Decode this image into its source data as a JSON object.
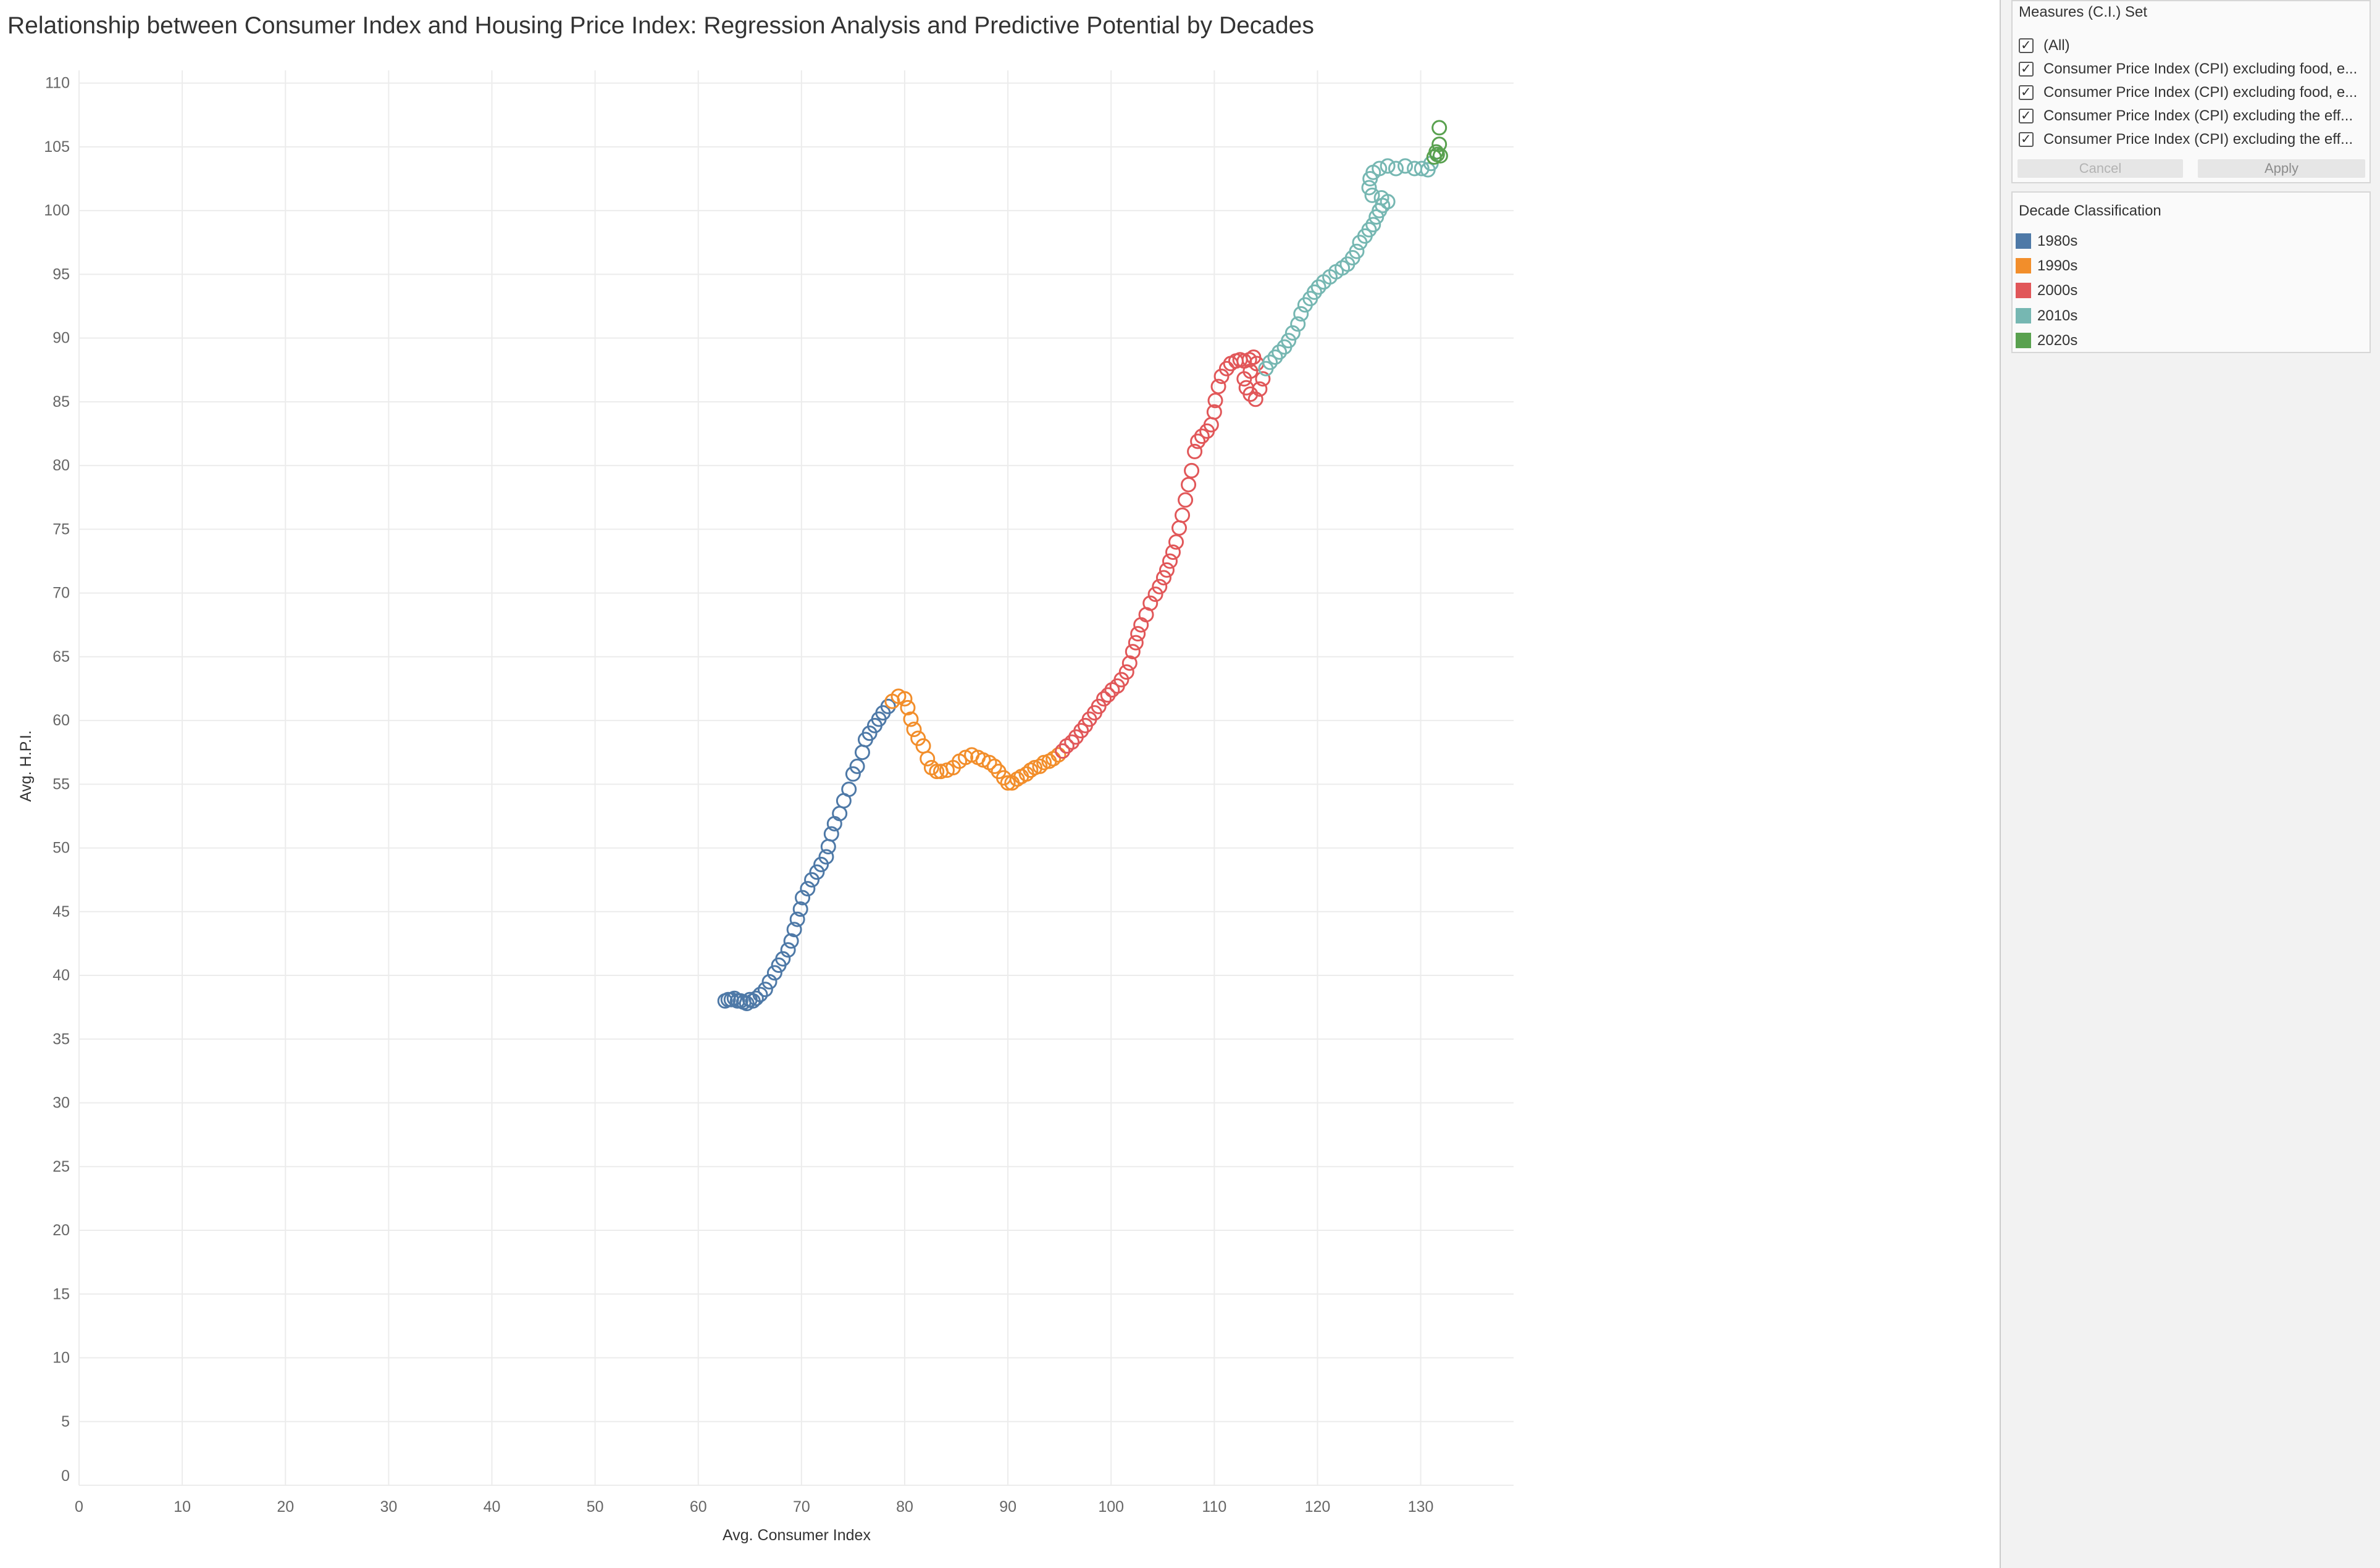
{
  "chart_data": {
    "type": "scatter",
    "title": "Relationship between Consumer Index and Housing Price Index: Regression Analysis and Predictive Potential by Decades",
    "xlabel": "Avg. Consumer Index",
    "ylabel": "Avg. H.P.I.",
    "xlim": [
      0,
      139
    ],
    "ylim": [
      0,
      111
    ],
    "x_ticks": [
      0,
      10,
      20,
      30,
      40,
      50,
      60,
      70,
      80,
      90,
      100,
      110,
      120,
      130
    ],
    "y_ticks": [
      0,
      5,
      10,
      15,
      20,
      25,
      30,
      35,
      40,
      45,
      50,
      55,
      60,
      65,
      70,
      75,
      80,
      85,
      90,
      95,
      100,
      105,
      110
    ],
    "grid": true,
    "legend": {
      "title": "Decade Classification",
      "position": "right"
    },
    "series": [
      {
        "name": "1980s",
        "color": "#4e79a7",
        "x": [
          62.6,
          62.9,
          63.2,
          63.5,
          63.8,
          64.1,
          64.4,
          64.7,
          65.0,
          65.3,
          65.6,
          66.0,
          66.5,
          66.9,
          67.4,
          67.8,
          68.2,
          68.7,
          69.0,
          69.3,
          69.6,
          69.9,
          70.1,
          70.6,
          71.0,
          71.5,
          71.9,
          72.4,
          72.6,
          72.9,
          73.2,
          73.7,
          74.1,
          74.6,
          75.0,
          75.4,
          75.9,
          76.2,
          76.6,
          77.1,
          77.5,
          77.9,
          78.4
        ],
        "y": [
          38.0,
          38.1,
          38.1,
          38.2,
          38.0,
          38.0,
          37.9,
          37.8,
          38.1,
          38.0,
          38.2,
          38.5,
          38.9,
          39.5,
          40.2,
          40.8,
          41.3,
          42.0,
          42.7,
          43.6,
          44.4,
          45.2,
          46.1,
          46.8,
          47.5,
          48.1,
          48.7,
          49.3,
          50.1,
          51.1,
          51.9,
          52.7,
          53.7,
          54.6,
          55.8,
          56.4,
          57.5,
          58.5,
          59.0,
          59.6,
          60.1,
          60.6,
          61.1
        ]
      },
      {
        "name": "1990s",
        "color": "#f28e2b",
        "x": [
          78.8,
          79.4,
          80.0,
          80.3,
          80.6,
          80.9,
          81.3,
          81.8,
          82.2,
          82.6,
          83.1,
          83.5,
          84.1,
          84.7,
          85.3,
          85.9,
          86.5,
          87.1,
          87.6,
          88.2,
          88.7,
          89.1,
          89.6,
          90.0,
          90.4,
          90.9,
          91.3,
          91.8,
          92.2,
          92.6,
          93.1,
          93.5,
          94.0,
          94.4,
          94.9
        ],
        "y": [
          61.5,
          61.9,
          61.7,
          61.0,
          60.1,
          59.3,
          58.6,
          58.0,
          57.0,
          56.3,
          56.0,
          56.0,
          56.1,
          56.3,
          56.8,
          57.1,
          57.3,
          57.1,
          56.9,
          56.7,
          56.4,
          56.0,
          55.5,
          55.1,
          55.1,
          55.4,
          55.6,
          55.8,
          56.1,
          56.3,
          56.4,
          56.7,
          56.8,
          57.0,
          57.3
        ]
      },
      {
        "name": "2000s",
        "color": "#e15759",
        "x": [
          95.3,
          95.7,
          96.2,
          96.6,
          97.1,
          97.5,
          97.9,
          98.4,
          98.8,
          99.3,
          99.7,
          100.1,
          100.6,
          101.0,
          101.5,
          101.8,
          102.1,
          102.4,
          102.6,
          102.9,
          103.4,
          103.8,
          104.3,
          104.7,
          105.1,
          105.4,
          105.7,
          106.0,
          106.3,
          106.6,
          106.9,
          107.2,
          107.5,
          107.8,
          108.1,
          108.4,
          108.8,
          109.3,
          109.7,
          110.0,
          110.1,
          110.4,
          110.7,
          111.2,
          111.6,
          112.1,
          112.5,
          112.9,
          113.4,
          113.8,
          114.1,
          113.5,
          112.9,
          113.1,
          113.5,
          114.0,
          114.4,
          114.7
        ],
        "y": [
          57.6,
          58.0,
          58.3,
          58.7,
          59.2,
          59.6,
          60.1,
          60.6,
          61.1,
          61.7,
          62.0,
          62.4,
          62.7,
          63.2,
          63.8,
          64.5,
          65.4,
          66.1,
          66.8,
          67.5,
          68.3,
          69.2,
          69.9,
          70.5,
          71.2,
          71.8,
          72.5,
          73.2,
          74.0,
          75.1,
          76.1,
          77.3,
          78.5,
          79.6,
          81.1,
          81.9,
          82.3,
          82.7,
          83.2,
          84.2,
          85.1,
          86.2,
          87.0,
          87.6,
          88.0,
          88.2,
          88.3,
          88.2,
          88.3,
          88.5,
          88.0,
          87.4,
          86.8,
          86.1,
          85.6,
          85.2,
          86.0,
          86.8
        ]
      },
      {
        "name": "2010s",
        "color": "#76b7b2",
        "x": [
          115.0,
          115.4,
          115.9,
          116.3,
          116.8,
          117.2,
          117.6,
          118.1,
          118.4,
          118.8,
          119.3,
          119.7,
          120.1,
          120.6,
          121.2,
          121.8,
          122.4,
          122.9,
          123.4,
          123.8,
          124.1,
          124.6,
          125.0,
          125.4,
          125.7,
          126.0,
          126.3,
          126.8,
          126.2,
          125.3,
          125.0,
          125.1,
          125.4,
          126.0,
          126.8,
          127.6,
          128.5,
          129.4,
          130.1,
          130.7,
          131.0
        ],
        "y": [
          87.6,
          88.1,
          88.5,
          88.9,
          89.3,
          89.8,
          90.4,
          91.1,
          91.9,
          92.6,
          93.1,
          93.6,
          94.0,
          94.4,
          94.8,
          95.2,
          95.5,
          95.8,
          96.3,
          96.8,
          97.5,
          98.0,
          98.5,
          98.9,
          99.5,
          100.0,
          100.4,
          100.7,
          101.0,
          101.2,
          101.8,
          102.5,
          103.0,
          103.3,
          103.5,
          103.3,
          103.5,
          103.3,
          103.3,
          103.2,
          103.7
        ]
      },
      {
        "name": "2020s",
        "color": "#59a14f",
        "x": [
          131.3,
          131.6,
          131.9,
          131.5,
          131.8,
          131.8
        ],
        "y": [
          104.2,
          104.4,
          104.3,
          104.6,
          105.2,
          106.5
        ]
      }
    ]
  },
  "filter_card": {
    "title": "Measures (C.I.) Set",
    "options": [
      {
        "label": "(All)",
        "checked": true
      },
      {
        "label": "Consumer Price Index (CPI) excluding food, e...",
        "checked": true
      },
      {
        "label": "Consumer Price Index (CPI) excluding food, e...",
        "checked": true
      },
      {
        "label": "Consumer Price Index (CPI) excluding the eff...",
        "checked": true
      },
      {
        "label": "Consumer Price Index (CPI) excluding the eff...",
        "checked": true
      }
    ],
    "cancel_label": "Cancel",
    "apply_label": "Apply"
  }
}
